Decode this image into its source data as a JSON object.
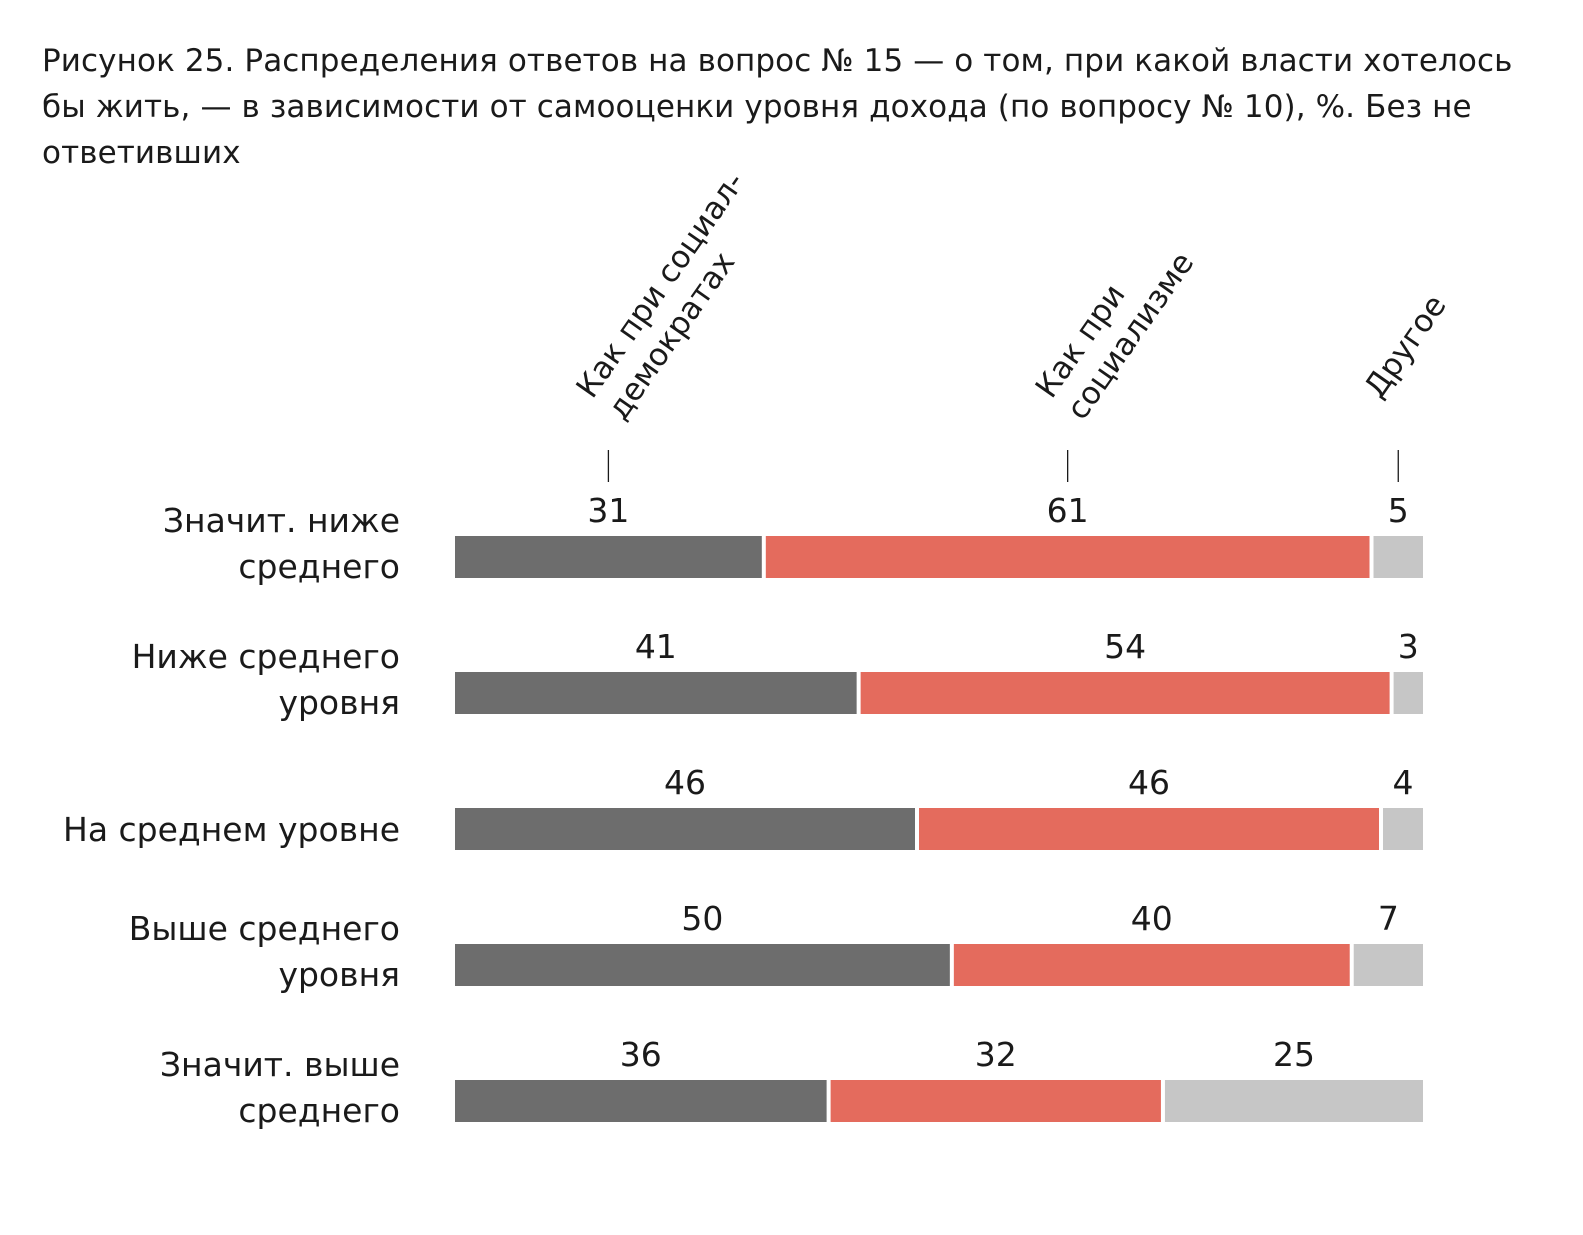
{
  "title": "Рисунок 25. Распределения ответов на вопрос № 15 — о том, при какой власти хотелось бы жить, — в зависимости от самооценки уровня дохода (по вопросу № 10), %. Без не ответивших",
  "chart_data": {
    "type": "bar",
    "orientation": "horizontal",
    "stacked": true,
    "title": "Рисунок 25. Распределения ответов на вопрос № 15 — о том, при какой власти хотелось бы жить, — в зависимости от самооценки уровня дохода (по вопросу № 10), %. Без не ответивших",
    "unit": "%",
    "categories": [
      [
        "Значит. ниже",
        "среднего"
      ],
      [
        "Ниже среднего",
        "уровня"
      ],
      [
        "На среднем уровне"
      ],
      [
        "Выше среднего",
        "уровня"
      ],
      [
        "Значит. выше",
        "среднего"
      ]
    ],
    "series": [
      {
        "name": [
          "Как при социал-",
          "демократах"
        ],
        "color": "#6d6d6d",
        "values": [
          31,
          41,
          46,
          50,
          36
        ]
      },
      {
        "name": [
          "Как при",
          "социализме"
        ],
        "color": "#e46b5d",
        "values": [
          61,
          54,
          46,
          40,
          32
        ]
      },
      {
        "name": [
          "Другое"
        ],
        "color": "#c6c6c6",
        "values": [
          5,
          3,
          4,
          7,
          25
        ]
      }
    ],
    "grid": false,
    "legend_placement": "top, rotated column headers"
  }
}
